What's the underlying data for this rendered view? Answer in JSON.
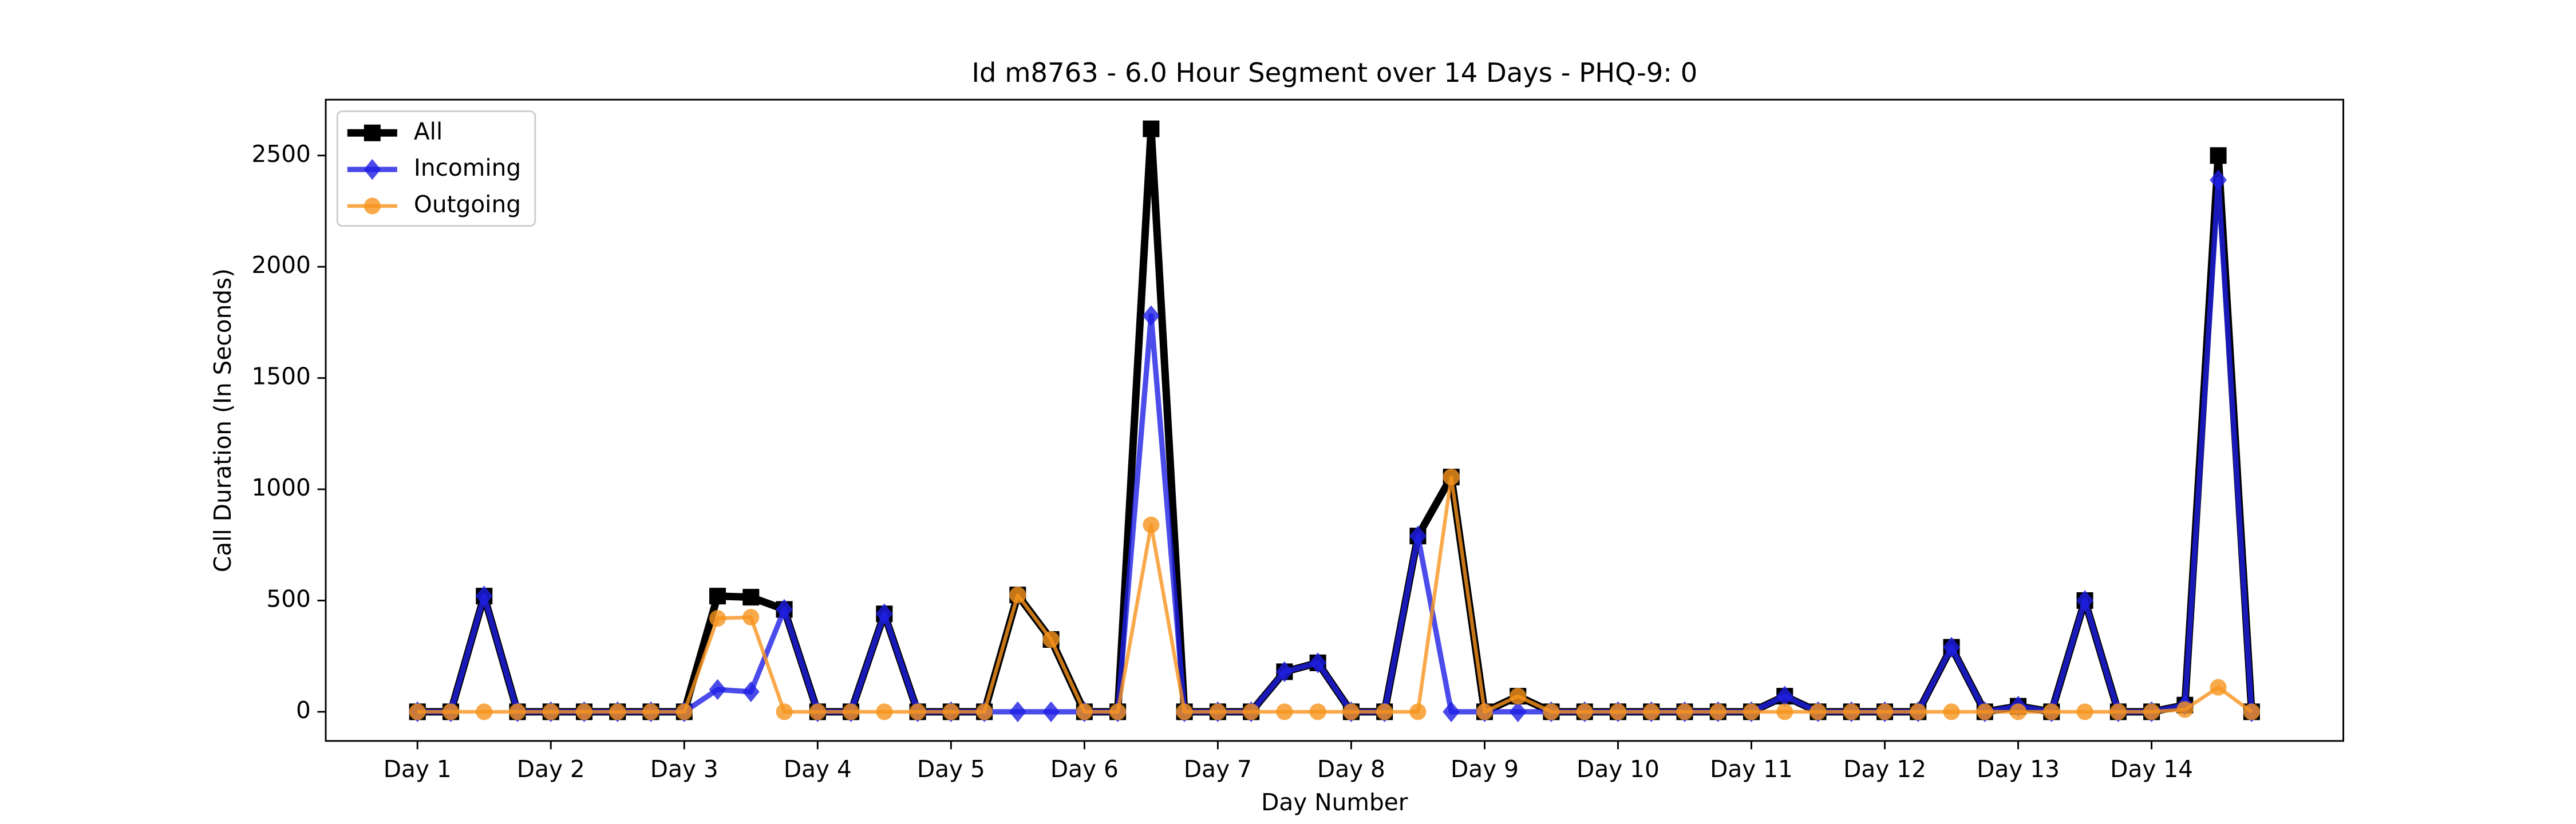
{
  "chart_data": {
    "type": "line",
    "title": "Id m8763 - 6.0 Hour Segment over 14 Days - PHQ-9: 0",
    "xlabel": "Day Number",
    "ylabel": "Call Duration (In Seconds)",
    "x": [
      0,
      1,
      2,
      3,
      4,
      5,
      6,
      7,
      8,
      9,
      10,
      11,
      12,
      13,
      14,
      15,
      16,
      17,
      18,
      19,
      20,
      21,
      22,
      23,
      24,
      25,
      26,
      27,
      28,
      29,
      30,
      31,
      32,
      33,
      34,
      35,
      36,
      37,
      38,
      39,
      40,
      41,
      42,
      43,
      44,
      45,
      46,
      47,
      48,
      49,
      50,
      51,
      52,
      53,
      54,
      55
    ],
    "series": [
      {
        "name": "All",
        "color": "#000000",
        "marker": "square",
        "values": [
          0,
          0,
          520,
          0,
          0,
          0,
          0,
          0,
          0,
          520,
          515,
          460,
          0,
          0,
          440,
          0,
          0,
          0,
          525,
          325,
          0,
          0,
          2620,
          0,
          0,
          0,
          180,
          220,
          0,
          0,
          790,
          1055,
          0,
          70,
          0,
          0,
          0,
          0,
          0,
          0,
          0,
          70,
          0,
          0,
          0,
          0,
          290,
          0,
          25,
          0,
          500,
          0,
          0,
          30,
          2500,
          0
        ]
      },
      {
        "name": "Incoming",
        "color": "#1f1fe6",
        "marker": "diamond",
        "values": [
          0,
          0,
          520,
          0,
          0,
          0,
          0,
          0,
          0,
          100,
          90,
          460,
          0,
          0,
          440,
          0,
          0,
          0,
          0,
          0,
          0,
          0,
          1780,
          0,
          0,
          0,
          180,
          220,
          0,
          0,
          790,
          0,
          0,
          0,
          0,
          0,
          0,
          0,
          0,
          0,
          0,
          70,
          0,
          0,
          0,
          0,
          290,
          0,
          25,
          0,
          500,
          0,
          0,
          30,
          2390,
          0
        ]
      },
      {
        "name": "Outgoing",
        "color": "#f7941d",
        "marker": "circle",
        "values": [
          0,
          0,
          0,
          0,
          0,
          0,
          0,
          0,
          0,
          420,
          425,
          0,
          0,
          0,
          0,
          0,
          0,
          0,
          525,
          325,
          0,
          0,
          840,
          0,
          0,
          0,
          0,
          0,
          0,
          0,
          0,
          1055,
          0,
          70,
          0,
          0,
          0,
          0,
          0,
          0,
          0,
          0,
          0,
          0,
          0,
          0,
          0,
          0,
          0,
          0,
          0,
          0,
          0,
          10,
          110,
          0
        ]
      }
    ],
    "xlim": [
      -2.75,
      57.75
    ],
    "xticks": [
      {
        "value": 0,
        "label": "Day 1"
      },
      {
        "value": 4,
        "label": "Day 2"
      },
      {
        "value": 8,
        "label": "Day 3"
      },
      {
        "value": 12,
        "label": "Day 4"
      },
      {
        "value": 16,
        "label": "Day 5"
      },
      {
        "value": 20,
        "label": "Day 6"
      },
      {
        "value": 24,
        "label": "Day 7"
      },
      {
        "value": 28,
        "label": "Day 8"
      },
      {
        "value": 32,
        "label": "Day 9"
      },
      {
        "value": 36,
        "label": "Day 10"
      },
      {
        "value": 40,
        "label": "Day 11"
      },
      {
        "value": 44,
        "label": "Day 12"
      },
      {
        "value": 48,
        "label": "Day 13"
      },
      {
        "value": 52,
        "label": "Day 14"
      }
    ],
    "ylim": [
      -131,
      2751
    ],
    "yticks": [
      0,
      500,
      1000,
      1500,
      2000,
      2500
    ],
    "grid": false,
    "legend": "upper left"
  }
}
